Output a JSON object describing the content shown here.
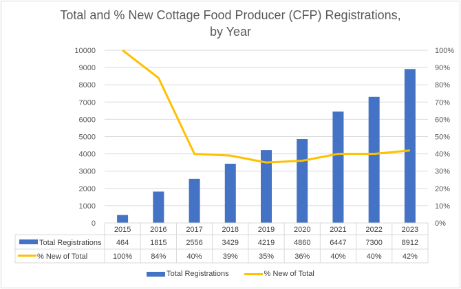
{
  "chart_data": {
    "type": "bar",
    "title_line1": "Total and % New Cottage Food Producer (CFP) Registrations,",
    "title_line2": "by Year",
    "categories": [
      "2015",
      "2016",
      "2017",
      "2018",
      "2019",
      "2020",
      "2021",
      "2022",
      "2023"
    ],
    "series": [
      {
        "name": "Total Registrations",
        "type": "bar",
        "axis": "left",
        "color": "#4472c4",
        "values": [
          464,
          1815,
          2556,
          3429,
          4219,
          4860,
          6447,
          7300,
          8912
        ],
        "labels": [
          "464",
          "1815",
          "2556",
          "3429",
          "4219",
          "4860",
          "6447",
          "7300",
          "8912"
        ]
      },
      {
        "name": "% New of Total",
        "type": "line",
        "axis": "right",
        "color": "#ffc000",
        "values": [
          100,
          84,
          40,
          39,
          35,
          36,
          40,
          40,
          42
        ],
        "labels": [
          "100%",
          "84%",
          "40%",
          "39%",
          "35%",
          "36%",
          "40%",
          "40%",
          "42%"
        ]
      }
    ],
    "y_left": {
      "ylim": [
        0,
        10000
      ],
      "ticks": [
        "0",
        "1000",
        "2000",
        "3000",
        "4000",
        "5000",
        "6000",
        "7000",
        "8000",
        "9000",
        "10000"
      ]
    },
    "y_right": {
      "ylim": [
        0,
        100
      ],
      "ticks": [
        "0%",
        "10%",
        "20%",
        "30%",
        "40%",
        "50%",
        "60%",
        "70%",
        "80%",
        "90%",
        "100%"
      ]
    },
    "grid": true,
    "legend": "bottom",
    "data_table": true
  }
}
